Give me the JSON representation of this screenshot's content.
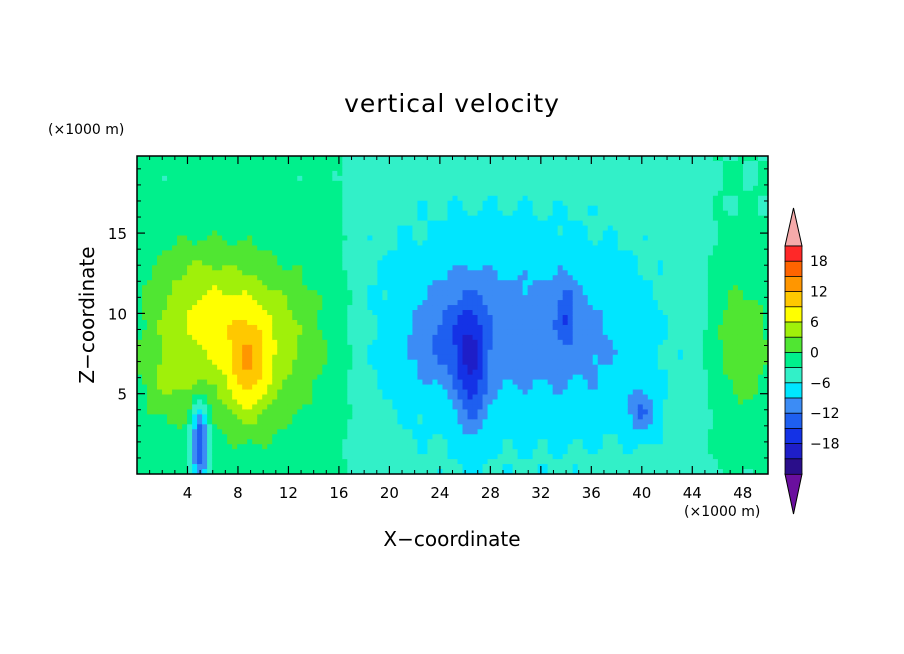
{
  "chart_data": {
    "type": "heatmap",
    "title": "vertical velocity",
    "xlabel": "X−coordinate",
    "ylabel": "Z−coordinate",
    "x_unit_label": "(×1000 m)",
    "y_unit_label": "(×1000 m)",
    "xlim": [
      0,
      50
    ],
    "ylim": [
      0,
      19.8
    ],
    "x_ticks": [
      "4",
      "8",
      "12",
      "16",
      "20",
      "24",
      "28",
      "32",
      "36",
      "40",
      "44",
      "48"
    ],
    "y_ticks": [
      "5",
      "10",
      "15"
    ],
    "colorbar": {
      "tick_labels": [
        "18",
        "12",
        "6",
        "0",
        "−6",
        "−12",
        "−18"
      ],
      "levels": [
        -21,
        -18,
        -15,
        -12,
        -9,
        -6,
        -3,
        0,
        3,
        6,
        9,
        12,
        15,
        18,
        21
      ],
      "colors": [
        "#6a0f9e",
        "#2a0e8a",
        "#1e1ec8",
        "#1432e6",
        "#1e5ff0",
        "#3c8cf5",
        "#00e6ff",
        "#32f0c8",
        "#00f08c",
        "#50e632",
        "#a0f00a",
        "#ffff00",
        "#ffc800",
        "#ff9600",
        "#ff6400",
        "#ff2828",
        "#f5aaaa"
      ]
    },
    "features": [
      {
        "cx": 9,
        "cz": 8,
        "sx": 5.5,
        "sz": 5,
        "amp": 9
      },
      {
        "cx": 8.8,
        "cz": 6.5,
        "sx": 1.4,
        "sz": 3.2,
        "amp": 6
      },
      {
        "cx": 4.5,
        "cz": 11,
        "sx": 4,
        "sz": 3.5,
        "amp": 5
      },
      {
        "cx": 2.5,
        "cz": 6,
        "sx": 2.5,
        "sz": 3,
        "amp": 4
      },
      {
        "cx": 5,
        "cz": 2,
        "sx": 0.7,
        "sz": 2.5,
        "amp": -14
      },
      {
        "cx": 26.5,
        "cz": 6.5,
        "sx": 1.2,
        "sz": 4,
        "amp": -8
      },
      {
        "cx": 24.5,
        "cz": 8.5,
        "sx": 3,
        "sz": 3,
        "amp": -4
      },
      {
        "cx": 28,
        "cz": 9,
        "sx": 8,
        "sz": 6,
        "amp": -5
      },
      {
        "cx": 34,
        "cz": 10,
        "sx": 0.8,
        "sz": 2,
        "amp": -5
      },
      {
        "cx": 40,
        "cz": 3.8,
        "sx": 1.2,
        "sz": 1.5,
        "amp": -6
      },
      {
        "cx": 36,
        "cz": 8,
        "sx": 5,
        "sz": 5,
        "amp": -3
      },
      {
        "cx": 48,
        "cz": 8,
        "sx": 2.5,
        "sz": 5,
        "amp": 5
      }
    ],
    "background": [
      {
        "x": 0,
        "v": 0.5
      },
      {
        "x": 16,
        "v": 0.5
      },
      {
        "x": 18,
        "v": -2
      },
      {
        "x": 44,
        "v": -2
      },
      {
        "x": 46,
        "v": 0
      },
      {
        "x": 50,
        "v": 0
      }
    ]
  }
}
